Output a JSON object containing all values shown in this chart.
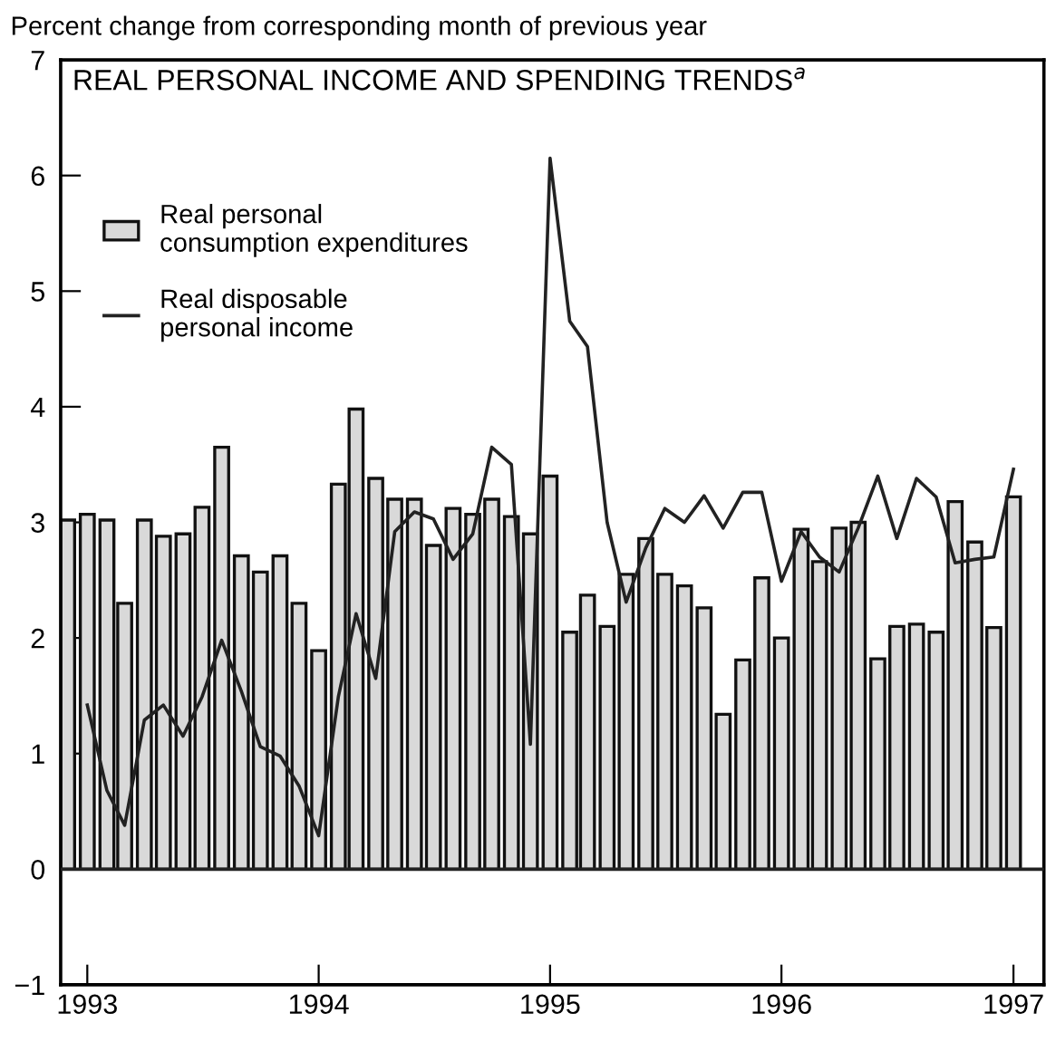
{
  "chart_data": {
    "type": "bar",
    "title": "REAL PERSONAL INCOME AND SPENDING TRENDS$^{a}$",
    "ylabel": "Percent change from corresponding month of previous year",
    "series": [
      {
        "name": "Real personal\nconsumption expenditures",
        "color": "#d9d9d9",
        "x": [
          "1992-12",
          "1993-01",
          "1993-02",
          "1993-03",
          "1993-04",
          "1993-05",
          "1993-06",
          "1993-07",
          "1993-08",
          "1993-09",
          "1993-10",
          "1993-11",
          "1993-12",
          "1994-01",
          "1994-02",
          "1994-03",
          "1994-04",
          "1994-05",
          "1994-06",
          "1994-07",
          "1994-08",
          "1994-09",
          "1994-10",
          "1994-11",
          "1994-12",
          "1995-01",
          "1995-02",
          "1995-03",
          "1995-04",
          "1995-05",
          "1995-06",
          "1995-07",
          "1995-08",
          "1995-09",
          "1995-10",
          "1995-11",
          "1995-12",
          "1996-01",
          "1996-02",
          "1996-03",
          "1996-04",
          "1996-05",
          "1996-06",
          "1996-07",
          "1996-08",
          "1996-09",
          "1996-10",
          "1996-11",
          "1996-12",
          "1997-01"
        ],
        "values": [
          3.02,
          3.07,
          3.02,
          2.3,
          3.02,
          2.88,
          2.9,
          3.13,
          3.65,
          2.71,
          2.57,
          2.71,
          2.3,
          1.89,
          3.33,
          3.98,
          3.38,
          3.2,
          3.2,
          2.8,
          3.12,
          3.07,
          3.2,
          3.05,
          2.9,
          3.4,
          2.05,
          2.37,
          2.1,
          2.55,
          2.86,
          2.55,
          2.45,
          2.26,
          1.34,
          1.81,
          2.52,
          2.0,
          2.94,
          2.66,
          2.95,
          3.0,
          1.82,
          2.1,
          2.12,
          2.05,
          3.18,
          2.83,
          2.09,
          3.22
        ]
      },
      {
        "name": "Real disposable\npersonal income",
        "type": "line",
        "color": "#222222",
        "x": [
          "1993-01",
          "1993-02",
          "1993-03",
          "1993-04",
          "1993-05",
          "1993-06",
          "1993-07",
          "1993-08",
          "1993-09",
          "1993-10",
          "1993-11",
          "1993-12",
          "1994-01",
          "1994-02",
          "1994-03",
          "1994-04",
          "1994-05",
          "1994-06",
          "1994-07",
          "1994-08",
          "1994-09",
          "1994-10",
          "1994-11",
          "1994-12",
          "1995-01",
          "1995-02",
          "1995-03",
          "1995-04",
          "1995-05",
          "1995-06",
          "1995-07",
          "1995-08",
          "1995-09",
          "1995-10",
          "1995-11",
          "1995-12",
          "1996-01",
          "1996-02",
          "1996-03",
          "1996-04",
          "1996-05",
          "1996-06",
          "1996-07",
          "1996-08",
          "1996-09",
          "1996-10",
          "1996-11",
          "1996-12",
          "1997-01"
        ],
        "values": [
          1.42,
          0.68,
          0.38,
          1.29,
          1.42,
          1.15,
          1.49,
          1.98,
          1.54,
          1.06,
          0.98,
          0.72,
          0.29,
          1.49,
          2.21,
          1.65,
          2.92,
          3.09,
          3.03,
          2.68,
          2.9,
          3.65,
          3.5,
          1.08,
          6.15,
          4.74,
          4.52,
          3.0,
          2.31,
          2.78,
          3.12,
          3.0,
          3.23,
          2.95,
          3.26,
          3.26,
          2.49,
          2.92,
          2.7,
          2.57,
          2.95,
          3.4,
          2.86,
          3.38,
          3.22,
          2.65,
          2.68,
          2.7,
          3.46
        ]
      }
    ],
    "xlim": [
      "1992-11-20",
      "1997-02-18"
    ],
    "xticks": [
      "1993",
      "1994",
      "1995",
      "1996",
      "1997"
    ],
    "ylim": [
      -1,
      7
    ],
    "yticks": [
      -1,
      0,
      1,
      2,
      3,
      4,
      5,
      6,
      7
    ],
    "ref_lines": [
      {
        "axis": "y",
        "value": 0,
        "color": "#222222"
      }
    ],
    "legend": "top left",
    "grid": false
  }
}
